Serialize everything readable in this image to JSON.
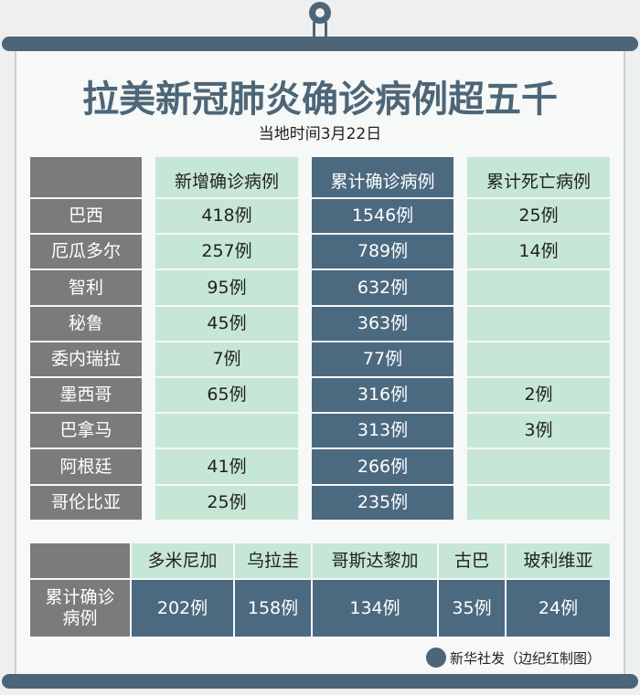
{
  "header": {
    "title": "拉美新冠肺炎确诊病例超五千",
    "subtitle": "当地时间3月22日"
  },
  "table": {
    "columns": [
      "新增确诊病例",
      "累计确诊病例",
      "累计死亡病例"
    ],
    "rows": [
      [
        "巴西",
        "418例",
        "1546例",
        "25例"
      ],
      [
        "厄瓜多尔",
        "257例",
        "789例",
        "14例"
      ],
      [
        "智利",
        "95例",
        "632例",
        null
      ],
      [
        "秘鲁",
        "45例",
        "363例",
        null
      ],
      [
        "委内瑞拉",
        "7例",
        "77例",
        null
      ],
      [
        "墨西哥",
        "65例",
        "316例",
        "2例"
      ],
      [
        "巴拿马",
        null,
        "313例",
        "3例"
      ],
      [
        "阿根廷",
        "41例",
        "266例",
        null
      ],
      [
        "哥伦比亚",
        "25例",
        "235例",
        null
      ]
    ]
  },
  "table2": {
    "row_label": "累计确诊病例",
    "columns": [
      "多米尼加",
      "乌拉圭",
      "哥斯达黎加",
      "古巴",
      "玻利维亚"
    ],
    "values": [
      "202例",
      "158例",
      "134例",
      "35例",
      "24例"
    ]
  },
  "footer": {
    "credit": "新华社发（边纪红制图）"
  }
}
